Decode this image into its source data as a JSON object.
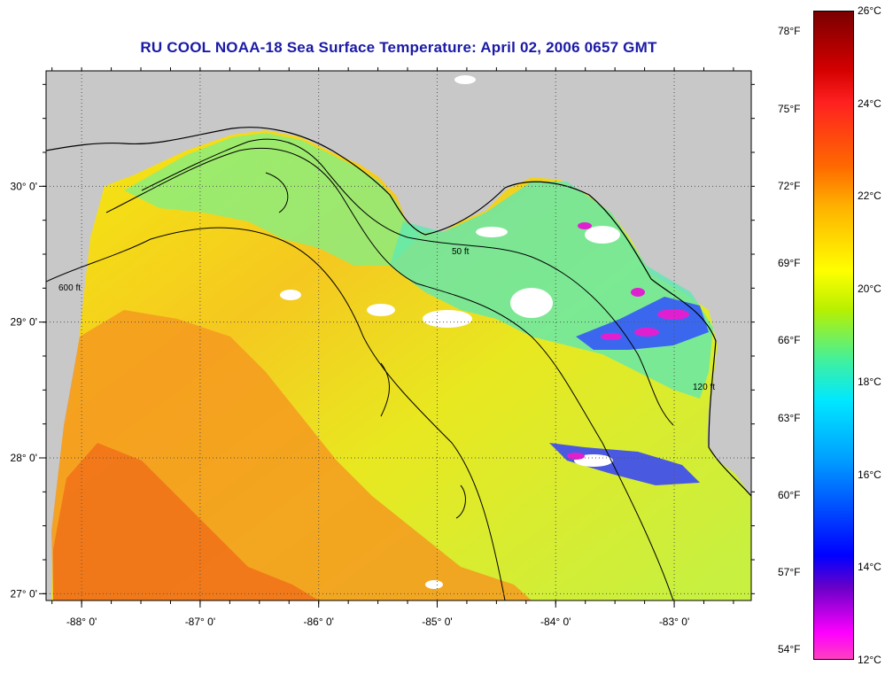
{
  "title": "RU COOL  NOAA-18  Sea Surface Temperature:  April 02, 2006 0657 GMT",
  "map": {
    "lon_ticks": [
      "-88° 0'",
      "-87° 0'",
      "-86° 0'",
      "-85° 0'",
      "-84° 0'",
      "-83° 0'"
    ],
    "lat_ticks": [
      "30° 0'",
      "29° 0'",
      "28° 0'",
      "27° 0'"
    ],
    "lon_range": [
      -88.3,
      -82.35
    ],
    "lat_range": [
      26.95,
      30.85
    ],
    "grid": "dotted",
    "land_color": "#c8c8c8",
    "cloud_color": "#ffffff",
    "contour_labels": [
      "50 ft",
      "120 ft",
      "600 ft"
    ]
  },
  "colorbar": {
    "celsius": [
      "26°C",
      "24°C",
      "22°C",
      "20°C",
      "18°C",
      "16°C",
      "14°C",
      "12°C"
    ],
    "fahrenheit": [
      "78°F",
      "75°F",
      "72°F",
      "69°F",
      "66°F",
      "63°F",
      "60°F",
      "57°F",
      "54°F"
    ],
    "range_c": [
      12,
      26
    ]
  }
}
